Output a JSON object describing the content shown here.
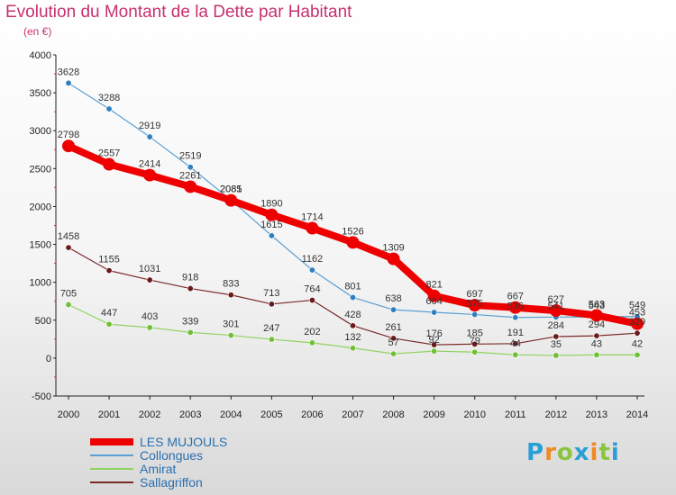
{
  "title": "Evolution du Montant de la Dette par Habitant",
  "subtitle": "(en €)",
  "logo": {
    "text": "Proxiti",
    "colors": [
      "#2a9fd6",
      "#f08a24",
      "#8bc53f",
      "#2a9fd6",
      "#f08a24",
      "#8bc53f",
      "#2a9fd6"
    ]
  },
  "chart_data": {
    "type": "line",
    "x": [
      2000,
      2001,
      2002,
      2003,
      2004,
      2005,
      2006,
      2007,
      2008,
      2009,
      2010,
      2011,
      2012,
      2013,
      2014
    ],
    "ylim": [
      -500,
      4000
    ],
    "yticks": [
      -500,
      0,
      500,
      1000,
      1500,
      2000,
      2500,
      3000,
      3500,
      4000
    ],
    "grid": false,
    "legend_position": "bottom-left",
    "series": [
      {
        "name": "Collongues",
        "color": "#5a9fd4",
        "marker": "#2f7fc0",
        "width": 1.2,
        "markerR": 3.2,
        "values": [
          3628,
          3288,
          2919,
          2519,
          2085,
          1615,
          1162,
          801,
          638,
          604,
          575,
          536,
          541,
          543,
          549
        ],
        "labels": [
          "3628",
          "3288",
          "2919",
          "2519",
          "2085",
          "1615",
          "1162",
          "801",
          "638",
          "604",
          "575",
          "536",
          "541",
          "543",
          "549"
        ]
      },
      {
        "name": "Amirat",
        "color": "#8ed35a",
        "marker": "#6fc036",
        "width": 1.2,
        "markerR": 3.2,
        "values": [
          705,
          447,
          403,
          339,
          301,
          247,
          202,
          132,
          57,
          92,
          79,
          44,
          35,
          43,
          42
        ],
        "labels": [
          "705",
          "447",
          "403",
          "339",
          "301",
          "247",
          "202",
          "132",
          "57",
          "92",
          "79",
          "44",
          "35",
          "43",
          "42"
        ]
      },
      {
        "name": "Sallagriffon",
        "color": "#7a2a2a",
        "marker": "#6a1a1a",
        "width": 1.2,
        "markerR": 3.2,
        "values": [
          1458,
          1155,
          1031,
          918,
          833,
          713,
          764,
          428,
          261,
          176,
          185,
          191,
          284,
          294,
          329
        ],
        "labels": [
          "1458",
          "1155",
          "1031",
          "918",
          "833",
          "713",
          "764",
          "428",
          "261",
          "176",
          "185",
          "191",
          "284",
          "294",
          "329"
        ]
      },
      {
        "name": "LES MUJOULS",
        "color": "#ee0000",
        "marker": "#ee0000",
        "width": 8,
        "markerR": 7,
        "values": [
          2798,
          2557,
          2414,
          2261,
          2081,
          1890,
          1714,
          1526,
          1309,
          821,
          697,
          667,
          627,
          563,
          453
        ],
        "labels": [
          "2798",
          "2557",
          "2414",
          "2261",
          "2081",
          "1890",
          "1714",
          "1526",
          "1309",
          "821",
          "697",
          "667",
          "627",
          "563",
          "453"
        ]
      }
    ]
  },
  "legend": [
    {
      "name": "LES MUJOULS",
      "color": "#ee0000",
      "height": 8
    },
    {
      "name": "Collongues",
      "color": "#5a9fd4",
      "height": 2
    },
    {
      "name": "Amirat",
      "color": "#8ed35a",
      "height": 2
    },
    {
      "name": "Sallagriffon",
      "color": "#7a2a2a",
      "height": 2
    }
  ]
}
